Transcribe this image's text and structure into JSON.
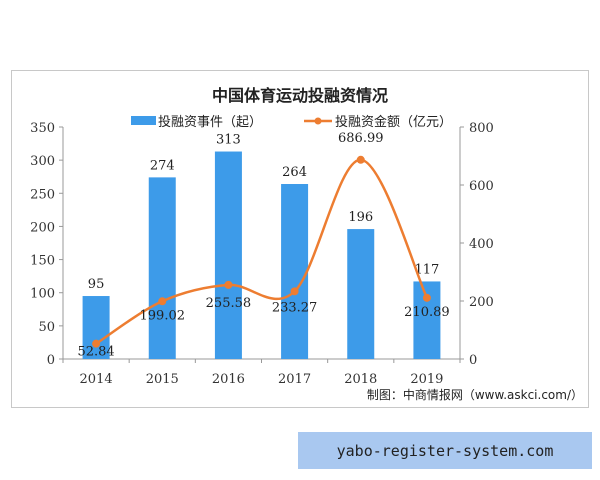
{
  "chart_data": {
    "type": "bar+line",
    "title": "中国体育运动投融资情况",
    "categories": [
      "2014",
      "2015",
      "2016",
      "2017",
      "2018",
      "2019"
    ],
    "series": [
      {
        "name": "投融资事件（起）",
        "type": "bar",
        "axis": "left",
        "color": "#3d9be9",
        "values": [
          95,
          274,
          313,
          264,
          196,
          117
        ]
      },
      {
        "name": "投融资金额（亿元）",
        "type": "line",
        "axis": "right",
        "color": "#ed7d31",
        "values": [
          52.84,
          199.02,
          255.58,
          233.27,
          686.99,
          210.89
        ]
      }
    ],
    "left_axis": {
      "ylim": [
        0,
        350
      ],
      "ticks": [
        0,
        50,
        100,
        150,
        200,
        250,
        300,
        350
      ]
    },
    "right_axis": {
      "ylim": [
        0,
        800
      ],
      "ticks": [
        0,
        200,
        400,
        600,
        800
      ]
    },
    "legend_position": "top",
    "grid": false,
    "source": "制图：中商情报网（www.askci.com/）"
  },
  "watermark_banner": "yabo-register-system.com"
}
